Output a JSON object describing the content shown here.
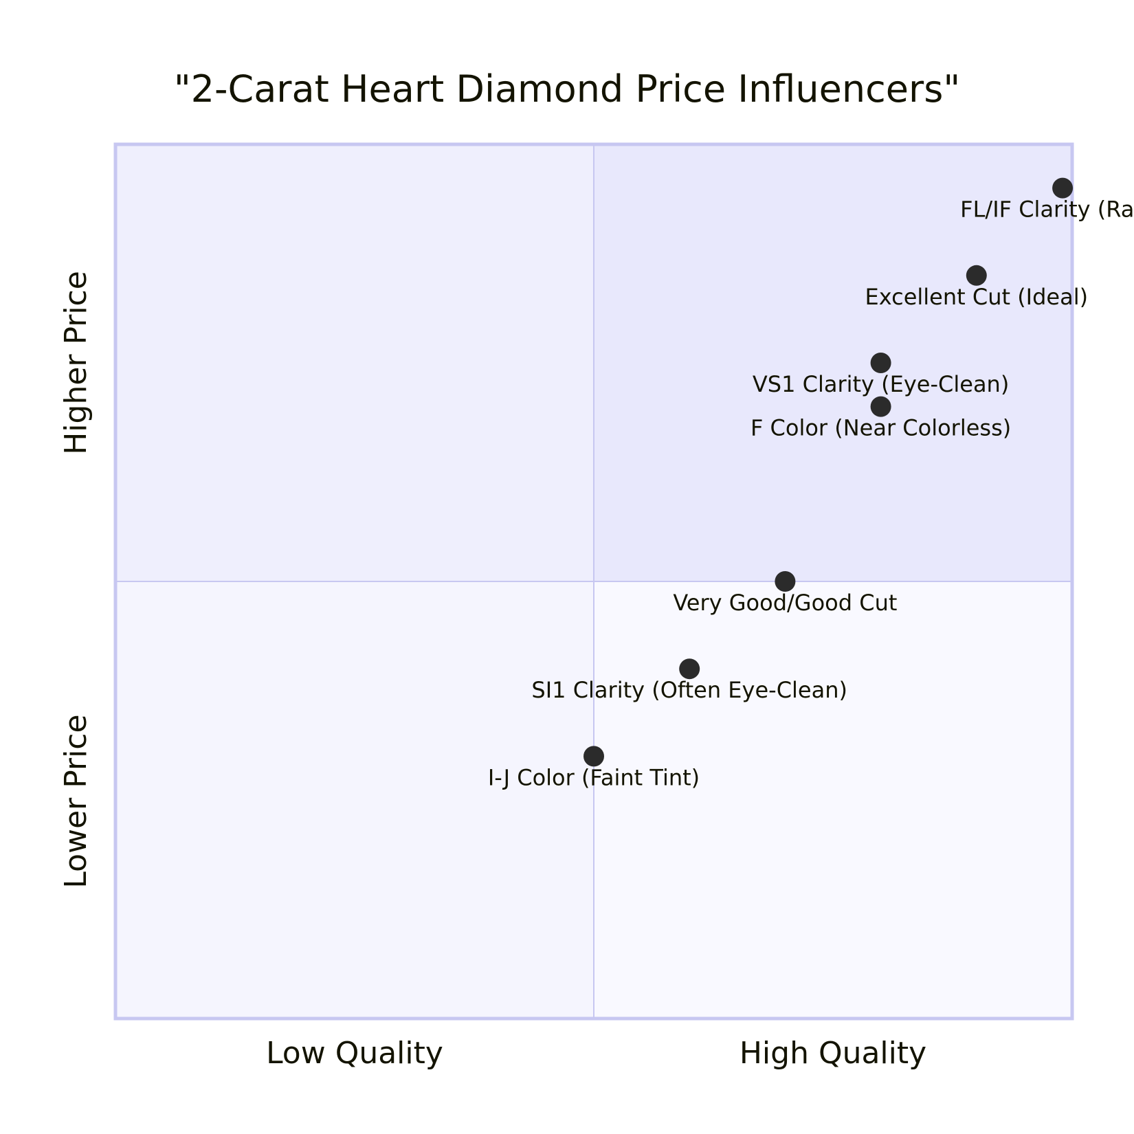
{
  "chart_data": {
    "type": "scatter",
    "title": "\"2-Carat Heart Diamond Price Influencers\"",
    "x_axis": {
      "low_label": "Low Quality",
      "high_label": "High Quality",
      "range": [
        0,
        1
      ]
    },
    "y_axis": {
      "low_label": "Lower Price",
      "high_label": "Higher Price",
      "range": [
        0,
        1
      ]
    },
    "quadrants": [
      {
        "position": "top-right",
        "label": "",
        "fill": "#e8e8fc"
      },
      {
        "position": "top-left",
        "label": "",
        "fill": "#efeffd"
      },
      {
        "position": "bottom-left",
        "label": "",
        "fill": "#f5f5fe"
      },
      {
        "position": "bottom-right",
        "label": "",
        "fill": "#f9f9ff"
      }
    ],
    "grid": true,
    "points": [
      {
        "label": "FL/IF Clarity (Rare)",
        "x": 0.99,
        "y": 0.95
      },
      {
        "label": "Excellent Cut (Ideal)",
        "x": 0.9,
        "y": 0.85
      },
      {
        "label": "VS1 Clarity (Eye-Clean)",
        "x": 0.8,
        "y": 0.75
      },
      {
        "label": "F Color (Near Colorless)",
        "x": 0.8,
        "y": 0.7
      },
      {
        "label": "Very Good/Good Cut",
        "x": 0.7,
        "y": 0.5
      },
      {
        "label": "SI1 Clarity (Often Eye-Clean)",
        "x": 0.6,
        "y": 0.4
      },
      {
        "label": "I-J Color (Faint Tint)",
        "x": 0.5,
        "y": 0.3
      }
    ]
  },
  "colors": {
    "border": "#c7c7f1",
    "divider": "#c7c7f1",
    "point": "#2b2b2b",
    "text": "#131300"
  }
}
